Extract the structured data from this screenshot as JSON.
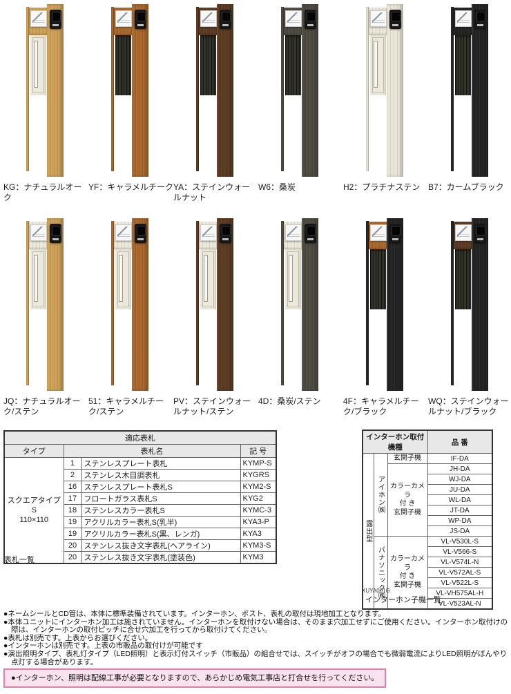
{
  "products": {
    "rows": [
      {
        "items": [
          {
            "code": "KG",
            "label": "KG：ナチュラルオーク",
            "pillar": "#cda057",
            "panel": "#cda057",
            "door": "cream"
          },
          {
            "code": "YF",
            "label": "YF：キャラメルチーク",
            "pillar": "#a8672c",
            "panel": "#a8672c",
            "door": "dark"
          },
          {
            "code": "YA",
            "label": "YA：ステインウォールナット",
            "pillar": "#5b3a22",
            "panel": "#5b3a22",
            "door": "dark"
          },
          {
            "code": "W6",
            "label": "W6：桑炭",
            "pillar": "#4d4a41",
            "panel": "#4d4a41",
            "door": "dark"
          },
          {
            "code": "H2",
            "label": "H2：プラチナステン",
            "pillar": "#eae6d8",
            "panel": "#eae6d8",
            "door": "cream"
          },
          {
            "code": "B7",
            "label": "B7：カームブラック",
            "pillar": "#232323",
            "panel": "#232323",
            "door": "dark"
          }
        ]
      },
      {
        "items": [
          {
            "code": "JQ",
            "label": "JQ：ナチュラルオーク/ステン",
            "pillar": "#cda057",
            "panel": "#ece8da",
            "door": "cream"
          },
          {
            "code": "51",
            "label": "51：キャラメルチーク/ステン",
            "pillar": "#a8672c",
            "panel": "#ece8da",
            "door": "cream"
          },
          {
            "code": "PV",
            "label": "PV：ステインウォールナット/ステン",
            "pillar": "#5b3a22",
            "panel": "#ece8da",
            "door": "cream"
          },
          {
            "code": "4D",
            "label": "4D：桑炭/ステン",
            "pillar": "#4d4a41",
            "panel": "#ece8da",
            "door": "cream"
          },
          {
            "code": "4F",
            "label": "4F：キャラメルチーク/ブラック",
            "pillar": "#232323",
            "panel": "#a8672c",
            "door": "dark"
          },
          {
            "code": "WQ",
            "label": "WQ：ステインウォールナット/ブラック",
            "pillar": "#232323",
            "panel": "#5b3a22",
            "door": "dark"
          }
        ]
      }
    ]
  },
  "nameplate_table": {
    "title": "適応表札",
    "col_type": "タイプ",
    "col_name": "表札名",
    "col_code": "記 号",
    "type_line1": "スクエアタイプS",
    "type_line2": "110×110",
    "rows": [
      {
        "no": "1",
        "name": "ステンレスプレート表札",
        "code": "KYMP-S"
      },
      {
        "no": "2",
        "name": "ステンレス木目調表札",
        "code": "KYGRS"
      },
      {
        "no": "16",
        "name": "ステンレスプレート表札S",
        "code": "KYM2-S"
      },
      {
        "no": "17",
        "name": "フロートガラス表札S",
        "code": "KYG2"
      },
      {
        "no": "18",
        "name": "ステンレスカラー表札S",
        "code": "KYMC-3"
      },
      {
        "no": "19",
        "name": "アクリルカラー表札S(乳半)",
        "code": "KYA3-P"
      },
      {
        "no": "19",
        "name": "アクリルカラー表札S(黒、レンガ)",
        "code": "KYA3"
      },
      {
        "no": "20",
        "name": "ステンレス抜き文字表札(ヘアライン)",
        "code": "KYM3-S"
      },
      {
        "no": "20",
        "name": "ステンレス抜き文字表札(塗装色)",
        "code": "KYM3"
      }
    ],
    "caption": "表札一覧"
  },
  "interphone_table": {
    "title": "インターホン取付機種",
    "col_part": "品 番",
    "outer_label": "露出型",
    "groups": [
      {
        "maker": "アイホン㈱",
        "sections": [
          {
            "type_lines": [
              "玄関子機"
            ],
            "models": [
              "IF-DA"
            ]
          },
          {
            "type_lines": [
              "カラーカメラ",
              "付 き",
              "玄関子機"
            ],
            "models": [
              "JH-DA",
              "WJ-DA",
              "JU-DA",
              "WL-DA",
              "JT-DA",
              "WP-DA",
              "JS-DA"
            ]
          }
        ]
      },
      {
        "maker": "パナソニック㈱",
        "sections": [
          {
            "type_lines": [
              "カラーカメラ",
              "付 き",
              "玄関子機"
            ],
            "models": [
              "VL-V530L-S",
              "VL-V566-S",
              "VL-V574L-N",
              "VL-V572AL-S",
              "VL-V522L-S",
              "VL-VH575AL-H",
              "VL-V523AL-N"
            ]
          }
        ]
      }
    ],
    "code_note": "XUYA001G",
    "caption": "インターホン子機一覧"
  },
  "notes": [
    "●ネームシールとCD管は、本体に標準装備されています。インターホン、ポスト、表札の取付は現地加工となります。",
    "●本体ユニットにインターホン加工は施されていません。インターホンを取付けない場合は、そのまま穴加工せずにご使用ください。インターホン取付けの際は、インターホンの取付ピッチに合せ穴加工を行ってから取付けてください。",
    "●表札は別売です。上表からお選びください。",
    "●インターホンは別売です。上表の市販品の取付けが可能です",
    "●演出照明タイプ、表札灯タイプ（LED照明）と表示灯付スイッチ（市販品）の組合せでは、スイッチがオフの場合でも微弱電流によりLED照明がぼんやり点灯する場合があります。"
  ],
  "warning": "●インターホン、照明は配線工事が必要となりますので、あらかじめ電気工事店と打合せを行ってください。"
}
